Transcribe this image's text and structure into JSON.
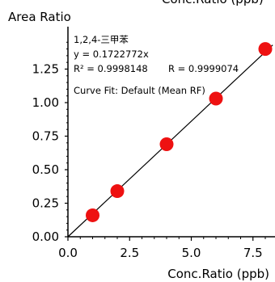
{
  "chart_data": {
    "type": "scatter",
    "title": "",
    "top_label_clipped": "Conc.Ratio (ppb)",
    "xlabel": "Conc.Ratio (ppb)",
    "ylabel": "Area Ratio",
    "xlim": [
      0,
      8.3
    ],
    "ylim": [
      0,
      1.5
    ],
    "xticks": [
      "0.0",
      "2.5",
      "5.0",
      "7.5"
    ],
    "xtick_values": [
      0,
      2.5,
      5,
      7.5
    ],
    "yticks": [
      "0.00",
      "0.25",
      "0.50",
      "0.75",
      "1.00",
      "1.25"
    ],
    "ytick_values": [
      0,
      0.25,
      0.5,
      0.75,
      1.0,
      1.25
    ],
    "grid": false,
    "series": [
      {
        "name": "1,2,4-三甲苯",
        "x": [
          1,
          2,
          4,
          6,
          8
        ],
        "y": [
          0.16,
          0.34,
          0.69,
          1.03,
          1.4
        ]
      }
    ],
    "fit_line": {
      "slope": 0.1722772,
      "intercept": 0
    },
    "annotations": {
      "compound": "1,2,4-三甲苯",
      "equation": "y = 0.1722772x",
      "r_squared": "R² = 0.9998148",
      "r_value": "R = 0.9999074",
      "curve_fit": "Curve Fit: Default (Mean RF)"
    },
    "colors": {
      "point": "#ee1111",
      "line": "#000000",
      "axis": "#000000"
    }
  }
}
